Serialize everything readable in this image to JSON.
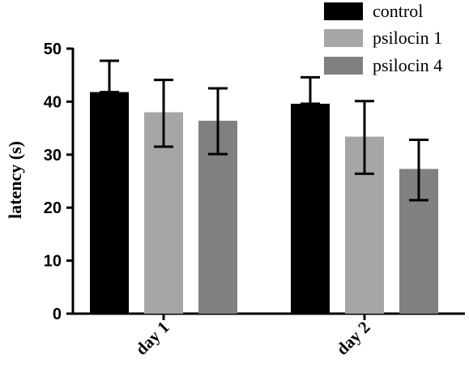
{
  "chart_data": {
    "type": "bar",
    "categories": [
      "day 1",
      "day 2"
    ],
    "ylabel": "latency (s)",
    "xlabel": "",
    "ylim": [
      0,
      50
    ],
    "yticks": [
      0,
      10,
      20,
      30,
      40,
      50
    ],
    "grid": false,
    "legend_position": "top-right",
    "series": [
      {
        "name": "control",
        "color": "#000000",
        "values": [
          41.8,
          39.6
        ],
        "err_low": [
          41.8,
          39.6
        ],
        "err_high": [
          47.7,
          44.6
        ]
      },
      {
        "name": "psilocin 1",
        "color": "#a6a6a6",
        "values": [
          38.0,
          33.4
        ],
        "err_low": [
          31.5,
          26.4
        ],
        "err_high": [
          44.1,
          40.1
        ]
      },
      {
        "name": "psilocin 4",
        "color": "#808080",
        "values": [
          36.4,
          27.3
        ],
        "err_low": [
          30.1,
          21.4
        ],
        "err_high": [
          42.5,
          32.8
        ]
      }
    ],
    "error_bars": "mean ± error"
  }
}
